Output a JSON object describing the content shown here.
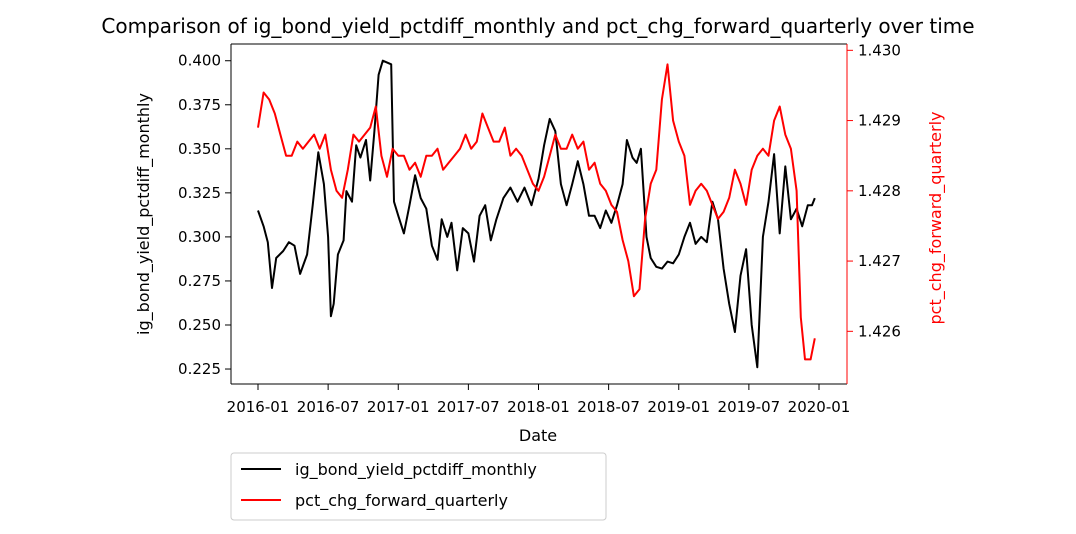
{
  "chart_data": {
    "type": "line",
    "title": "Comparison of ig_bond_yield_pctdiff_monthly and pct_chg_forward_quarterly over time",
    "xlabel": "Date",
    "ylabel_left": "ig_bond_yield_pctdiff_monthly",
    "ylabel_right": "pct_chg_forward_quarterly",
    "x_ticks": [
      "2016-01",
      "2016-07",
      "2017-01",
      "2017-07",
      "2018-01",
      "2018-07",
      "2019-01",
      "2019-07",
      "2020-01"
    ],
    "y_left_ticks": [
      "0.225",
      "0.250",
      "0.275",
      "0.300",
      "0.325",
      "0.350",
      "0.375",
      "0.400"
    ],
    "y_right_ticks": [
      "1.426",
      "1.427",
      "1.428",
      "1.429",
      "1.430"
    ],
    "xlim": [
      2016.0,
      2020.0
    ],
    "ylim_left": [
      0.2165,
      0.4095
    ],
    "ylim_right": [
      1.42525,
      1.43009
    ],
    "legend_position": "below-left",
    "grid": false,
    "colors": {
      "left": "#000000",
      "right": "#ff0000"
    },
    "series": [
      {
        "name": "ig_bond_yield_pctdiff_monthly",
        "axis": "left",
        "color": "#000000",
        "points": [
          [
            2016.0,
            0.315
          ],
          [
            2016.04,
            0.306
          ],
          [
            2016.07,
            0.297
          ],
          [
            2016.1,
            0.271
          ],
          [
            2016.13,
            0.288
          ],
          [
            2016.18,
            0.292
          ],
          [
            2016.22,
            0.297
          ],
          [
            2016.26,
            0.295
          ],
          [
            2016.3,
            0.279
          ],
          [
            2016.35,
            0.29
          ],
          [
            2016.39,
            0.318
          ],
          [
            2016.43,
            0.348
          ],
          [
            2016.47,
            0.33
          ],
          [
            2016.5,
            0.3
          ],
          [
            2016.52,
            0.255
          ],
          [
            2016.54,
            0.262
          ],
          [
            2016.57,
            0.29
          ],
          [
            2016.61,
            0.298
          ],
          [
            2016.63,
            0.326
          ],
          [
            2016.67,
            0.32
          ],
          [
            2016.7,
            0.352
          ],
          [
            2016.73,
            0.345
          ],
          [
            2016.77,
            0.355
          ],
          [
            2016.8,
            0.332
          ],
          [
            2016.83,
            0.36
          ],
          [
            2016.86,
            0.392
          ],
          [
            2016.89,
            0.4
          ],
          [
            2016.95,
            0.398
          ],
          [
            2016.97,
            0.32
          ],
          [
            2017.0,
            0.312
          ],
          [
            2017.04,
            0.302
          ],
          [
            2017.08,
            0.318
          ],
          [
            2017.12,
            0.335
          ],
          [
            2017.16,
            0.322
          ],
          [
            2017.2,
            0.316
          ],
          [
            2017.24,
            0.295
          ],
          [
            2017.28,
            0.287
          ],
          [
            2017.31,
            0.31
          ],
          [
            2017.35,
            0.3
          ],
          [
            2017.38,
            0.308
          ],
          [
            2017.42,
            0.281
          ],
          [
            2017.46,
            0.305
          ],
          [
            2017.5,
            0.302
          ],
          [
            2017.54,
            0.286
          ],
          [
            2017.58,
            0.312
          ],
          [
            2017.62,
            0.318
          ],
          [
            2017.66,
            0.298
          ],
          [
            2017.7,
            0.31
          ],
          [
            2017.75,
            0.322
          ],
          [
            2017.8,
            0.328
          ],
          [
            2017.85,
            0.32
          ],
          [
            2017.9,
            0.328
          ],
          [
            2017.95,
            0.318
          ],
          [
            2018.0,
            0.333
          ],
          [
            2018.04,
            0.352
          ],
          [
            2018.08,
            0.367
          ],
          [
            2018.12,
            0.36
          ],
          [
            2018.16,
            0.33
          ],
          [
            2018.2,
            0.318
          ],
          [
            2018.24,
            0.33
          ],
          [
            2018.28,
            0.343
          ],
          [
            2018.32,
            0.33
          ],
          [
            2018.36,
            0.312
          ],
          [
            2018.4,
            0.312
          ],
          [
            2018.44,
            0.305
          ],
          [
            2018.48,
            0.315
          ],
          [
            2018.52,
            0.308
          ],
          [
            2018.56,
            0.318
          ],
          [
            2018.6,
            0.33
          ],
          [
            2018.63,
            0.355
          ],
          [
            2018.67,
            0.345
          ],
          [
            2018.7,
            0.342
          ],
          [
            2018.73,
            0.35
          ],
          [
            2018.77,
            0.3
          ],
          [
            2018.8,
            0.288
          ],
          [
            2018.84,
            0.283
          ],
          [
            2018.88,
            0.282
          ],
          [
            2018.92,
            0.286
          ],
          [
            2018.96,
            0.285
          ],
          [
            2019.0,
            0.29
          ],
          [
            2019.04,
            0.3
          ],
          [
            2019.08,
            0.308
          ],
          [
            2019.12,
            0.296
          ],
          [
            2019.16,
            0.3
          ],
          [
            2019.2,
            0.297
          ],
          [
            2019.24,
            0.32
          ],
          [
            2019.28,
            0.31
          ],
          [
            2019.32,
            0.282
          ],
          [
            2019.36,
            0.262
          ],
          [
            2019.4,
            0.246
          ],
          [
            2019.44,
            0.278
          ],
          [
            2019.48,
            0.293
          ],
          [
            2019.52,
            0.25
          ],
          [
            2019.56,
            0.226
          ],
          [
            2019.6,
            0.3
          ],
          [
            2019.64,
            0.32
          ],
          [
            2019.68,
            0.347
          ],
          [
            2019.72,
            0.302
          ],
          [
            2019.76,
            0.34
          ],
          [
            2019.8,
            0.31
          ],
          [
            2019.84,
            0.316
          ],
          [
            2019.88,
            0.306
          ],
          [
            2019.92,
            0.318
          ],
          [
            2019.95,
            0.318
          ],
          [
            2019.97,
            0.322
          ]
        ]
      },
      {
        "name": "pct_chg_forward_quarterly",
        "axis": "right",
        "color": "#ff0000",
        "points": [
          [
            2016.0,
            1.4289
          ],
          [
            2016.04,
            1.4294
          ],
          [
            2016.08,
            1.4293
          ],
          [
            2016.12,
            1.4291
          ],
          [
            2016.16,
            1.4288
          ],
          [
            2016.2,
            1.4285
          ],
          [
            2016.24,
            1.4285
          ],
          [
            2016.28,
            1.4287
          ],
          [
            2016.32,
            1.4286
          ],
          [
            2016.36,
            1.4287
          ],
          [
            2016.4,
            1.4288
          ],
          [
            2016.44,
            1.4286
          ],
          [
            2016.48,
            1.4288
          ],
          [
            2016.52,
            1.4283
          ],
          [
            2016.56,
            1.428
          ],
          [
            2016.6,
            1.4279
          ],
          [
            2016.64,
            1.4283
          ],
          [
            2016.68,
            1.4288
          ],
          [
            2016.72,
            1.4287
          ],
          [
            2016.76,
            1.4288
          ],
          [
            2016.8,
            1.4289
          ],
          [
            2016.84,
            1.4292
          ],
          [
            2016.88,
            1.4285
          ],
          [
            2016.92,
            1.4282
          ],
          [
            2016.96,
            1.4286
          ],
          [
            2017.0,
            1.4285
          ],
          [
            2017.04,
            1.4285
          ],
          [
            2017.08,
            1.4283
          ],
          [
            2017.12,
            1.4284
          ],
          [
            2017.16,
            1.4282
          ],
          [
            2017.2,
            1.4285
          ],
          [
            2017.24,
            1.4285
          ],
          [
            2017.28,
            1.4286
          ],
          [
            2017.32,
            1.4283
          ],
          [
            2017.36,
            1.4284
          ],
          [
            2017.4,
            1.4285
          ],
          [
            2017.44,
            1.4286
          ],
          [
            2017.48,
            1.4288
          ],
          [
            2017.52,
            1.4286
          ],
          [
            2017.56,
            1.4287
          ],
          [
            2017.6,
            1.4291
          ],
          [
            2017.64,
            1.4289
          ],
          [
            2017.68,
            1.4287
          ],
          [
            2017.72,
            1.4287
          ],
          [
            2017.76,
            1.4289
          ],
          [
            2017.8,
            1.4285
          ],
          [
            2017.84,
            1.4286
          ],
          [
            2017.88,
            1.4285
          ],
          [
            2017.92,
            1.4283
          ],
          [
            2017.96,
            1.4281
          ],
          [
            2018.0,
            1.428
          ],
          [
            2018.04,
            1.4282
          ],
          [
            2018.08,
            1.4285
          ],
          [
            2018.12,
            1.4288
          ],
          [
            2018.16,
            1.4286
          ],
          [
            2018.2,
            1.4286
          ],
          [
            2018.24,
            1.4288
          ],
          [
            2018.28,
            1.4286
          ],
          [
            2018.32,
            1.4287
          ],
          [
            2018.36,
            1.4283
          ],
          [
            2018.4,
            1.4284
          ],
          [
            2018.44,
            1.4281
          ],
          [
            2018.48,
            1.428
          ],
          [
            2018.52,
            1.4278
          ],
          [
            2018.56,
            1.4277
          ],
          [
            2018.6,
            1.4273
          ],
          [
            2018.64,
            1.427
          ],
          [
            2018.68,
            1.4265
          ],
          [
            2018.72,
            1.4266
          ],
          [
            2018.76,
            1.4276
          ],
          [
            2018.8,
            1.4281
          ],
          [
            2018.84,
            1.4283
          ],
          [
            2018.88,
            1.4293
          ],
          [
            2018.92,
            1.4298
          ],
          [
            2018.96,
            1.429
          ],
          [
            2019.0,
            1.4287
          ],
          [
            2019.04,
            1.4285
          ],
          [
            2019.08,
            1.4278
          ],
          [
            2019.12,
            1.428
          ],
          [
            2019.16,
            1.4281
          ],
          [
            2019.2,
            1.428
          ],
          [
            2019.24,
            1.4278
          ],
          [
            2019.28,
            1.4276
          ],
          [
            2019.32,
            1.4277
          ],
          [
            2019.36,
            1.4279
          ],
          [
            2019.4,
            1.4283
          ],
          [
            2019.44,
            1.4281
          ],
          [
            2019.48,
            1.4278
          ],
          [
            2019.52,
            1.4283
          ],
          [
            2019.56,
            1.4285
          ],
          [
            2019.6,
            1.4286
          ],
          [
            2019.64,
            1.4285
          ],
          [
            2019.68,
            1.429
          ],
          [
            2019.72,
            1.4292
          ],
          [
            2019.76,
            1.4288
          ],
          [
            2019.8,
            1.4286
          ],
          [
            2019.84,
            1.428
          ],
          [
            2019.87,
            1.4262
          ],
          [
            2019.9,
            1.4256
          ],
          [
            2019.94,
            1.4256
          ],
          [
            2019.97,
            1.4259
          ]
        ]
      }
    ]
  }
}
